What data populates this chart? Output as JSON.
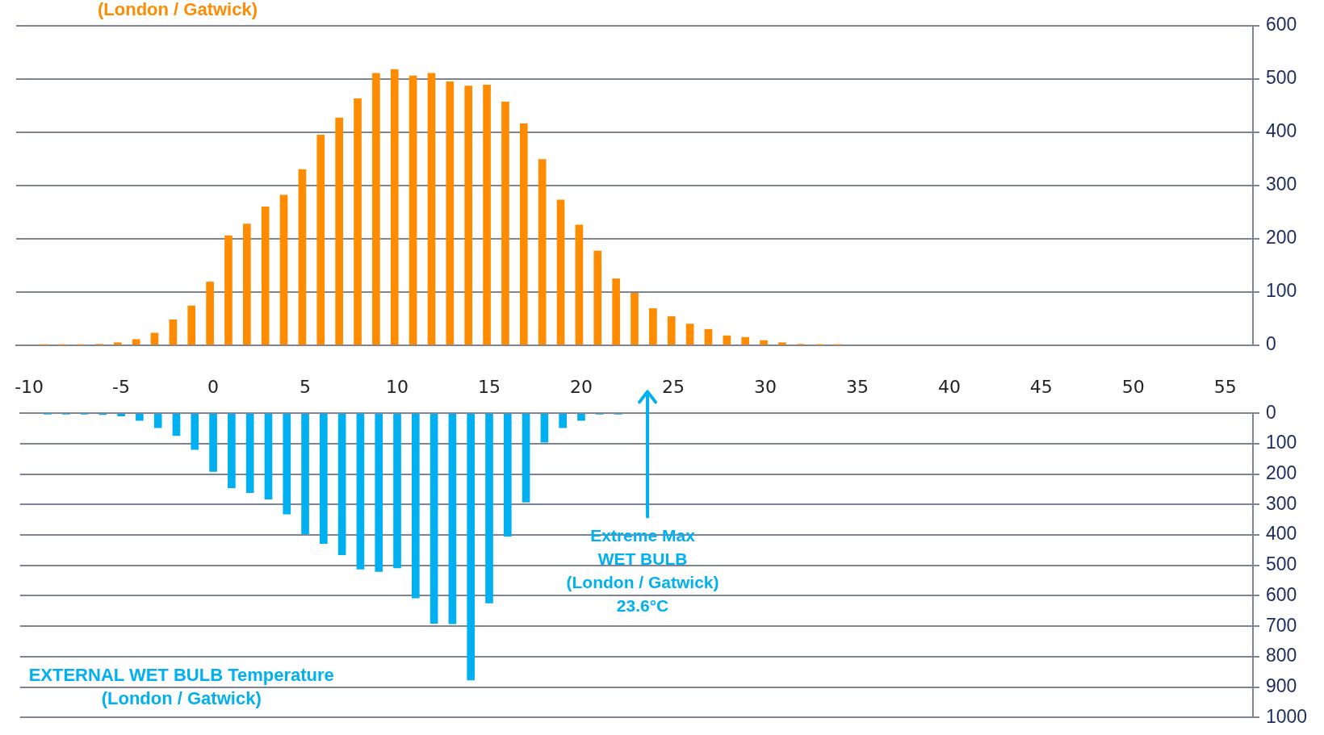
{
  "chart_data": [
    {
      "type": "bar",
      "title": "(London / Gatwick)",
      "color": "#ff8c00",
      "x": [
        -9,
        -8,
        -7,
        -6,
        -5,
        -4,
        -3,
        -2,
        -1,
        0,
        1,
        2,
        3,
        4,
        5,
        6,
        7,
        8,
        9,
        10,
        11,
        12,
        13,
        14,
        15,
        16,
        17,
        18,
        19,
        20,
        21,
        22,
        23,
        24,
        25,
        26,
        27,
        28,
        29,
        30,
        31,
        32,
        33,
        34
      ],
      "values": [
        1,
        1,
        1,
        2,
        5,
        11,
        23,
        48,
        74,
        119,
        206,
        228,
        260,
        282,
        330,
        395,
        427,
        463,
        511,
        518,
        506,
        511,
        495,
        487,
        489,
        457,
        416,
        349,
        273,
        226,
        177,
        125,
        98,
        69,
        54,
        40,
        30,
        18,
        15,
        9,
        5,
        2,
        1,
        1
      ],
      "xlim": [
        -10.5,
        56.5
      ],
      "ylim": [
        0,
        600
      ],
      "yticks": [
        0,
        100,
        200,
        300,
        400,
        500,
        600
      ],
      "grid": "y",
      "tick_labels": "y"
    },
    {
      "type": "bar",
      "title": "EXTERNAL WET BULB Temperature\n(London / Gatwick)",
      "color": "#00b0f0",
      "x": [
        -9,
        -8,
        -7,
        -6,
        -5,
        -4,
        -3,
        -2,
        -1,
        0,
        1,
        2,
        3,
        4,
        5,
        6,
        7,
        8,
        9,
        10,
        11,
        12,
        13,
        14,
        15,
        16,
        17,
        18,
        19,
        20,
        21,
        22
      ],
      "values": [
        1,
        1,
        1,
        4,
        9,
        23,
        47,
        73,
        119,
        191,
        245,
        261,
        282,
        331,
        397,
        428,
        465,
        512,
        520,
        508,
        607,
        691,
        692,
        877,
        624,
        404,
        292,
        95,
        47,
        23,
        3,
        3
      ],
      "xlim": [
        -10.5,
        56.5
      ],
      "xticks": [
        -10,
        -5,
        0,
        5,
        10,
        15,
        20,
        25,
        30,
        35,
        40,
        45,
        50,
        55
      ],
      "ylim": [
        1000,
        0
      ],
      "yticks": [
        0,
        100,
        200,
        300,
        400,
        500,
        600,
        700,
        800,
        900,
        1000
      ],
      "grid": "y",
      "ref_lines": [
        {
          "axis": "x",
          "value": 23.6,
          "label": "Extreme Max\nWET BULB\n(London / Gatwick)\n23.6°C",
          "color": "#00b0f0"
        }
      ]
    }
  ]
}
